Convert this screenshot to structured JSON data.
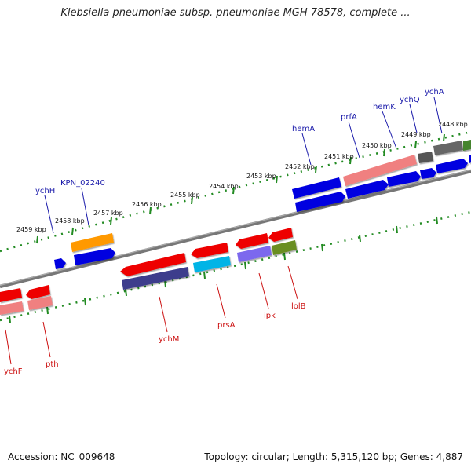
{
  "title": "Klebsiella pneumoniae subsp. pneumoniae MGH 78578, complete ...",
  "footer": {
    "accession": "Accession: NC_009648",
    "summary": "Topology: circular; Length: 5,315,120 bp; Genes: 4,887"
  },
  "scale_ticks": [
    "2448 kbp",
    "2449 kbp",
    "2450 kbp",
    "2451 kbp",
    "2452 kbp",
    "2453 kbp",
    "2454 kbp",
    "2455 kbp",
    "2456 kbp",
    "2457 kbp",
    "2458 kbp",
    "2459 kbp"
  ],
  "forward_genes": [
    "ychA",
    "ychQ",
    "hemK",
    "prfA",
    "hemA",
    "KPN_02240",
    "ychH"
  ],
  "reverse_genes": [
    "lolB",
    "ipk",
    "prsA",
    "ychM",
    "pth",
    "ychF"
  ],
  "colors": {
    "forward_label": "#1a1aaa",
    "reverse_label": "#cc1111",
    "blue": "#0000e0",
    "red": "#ee0000",
    "pink": "#f08080",
    "orange": "#ff9900",
    "grey": "#666666",
    "olive": "#6b8e23",
    "navy": "#3c3c8c",
    "lavender": "#7b68ee",
    "cyan": "#00b4e6",
    "scale_dots": "#228b22",
    "backbone": "#888888"
  }
}
